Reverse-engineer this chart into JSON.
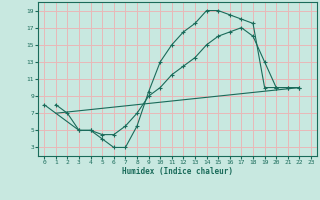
{
  "xlabel": "Humidex (Indice chaleur)",
  "bg_color": "#c8e8e0",
  "grid_color": "#e8b8b8",
  "line_color": "#1a6b5a",
  "xlim": [
    -0.5,
    23.5
  ],
  "ylim": [
    2,
    20
  ],
  "xticks": [
    0,
    1,
    2,
    3,
    4,
    5,
    6,
    7,
    8,
    9,
    10,
    11,
    12,
    13,
    14,
    15,
    16,
    17,
    18,
    19,
    20,
    21,
    22,
    23
  ],
  "yticks": [
    3,
    5,
    7,
    9,
    11,
    13,
    15,
    17,
    19
  ],
  "line1_x": [
    1,
    2,
    3,
    4,
    5,
    6,
    7,
    8,
    9,
    10,
    11,
    12,
    13,
    14,
    15,
    16,
    17,
    18,
    19,
    20,
    21,
    22
  ],
  "line1_y": [
    8.0,
    7.0,
    5.0,
    5.0,
    4.0,
    3.0,
    3.0,
    5.5,
    9.5,
    13.0,
    15.0,
    16.5,
    17.5,
    19.0,
    19.0,
    18.5,
    18.0,
    17.5,
    10.0,
    10.0,
    10.0,
    10.0
  ],
  "line2_x": [
    1,
    22
  ],
  "line2_y": [
    7.0,
    10.0
  ],
  "line3_x": [
    0,
    3,
    4,
    5,
    6,
    7,
    8,
    9,
    10,
    11,
    12,
    13,
    14,
    15,
    16,
    17,
    18,
    19,
    20,
    21,
    22
  ],
  "line3_y": [
    8.0,
    5.0,
    5.0,
    4.5,
    4.5,
    5.5,
    7.0,
    9.0,
    10.0,
    11.5,
    12.5,
    13.5,
    15.0,
    16.0,
    16.5,
    17.0,
    16.0,
    13.0,
    10.0,
    10.0,
    10.0
  ]
}
